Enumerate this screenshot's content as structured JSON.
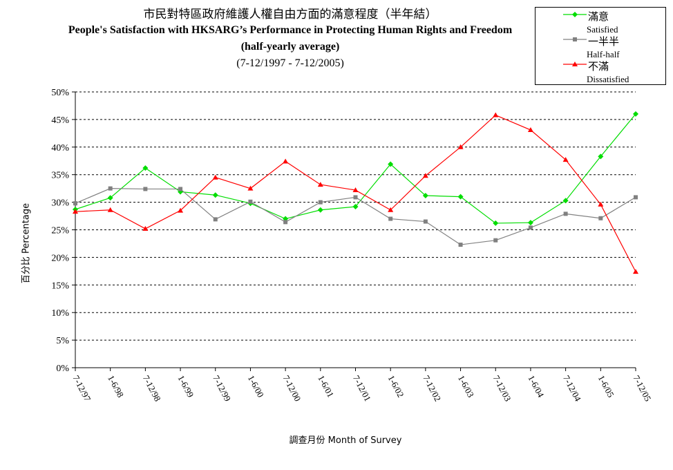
{
  "title_zh": "市民對特區政府維護人權自由方面的滿意程度（半年結）",
  "title_en": "People's Satisfaction with HKSARG’s Performance in Protecting Human Rights and Freedom",
  "subtitle": "(half-yearly average)",
  "period": "(7-12/1997 - 7-12/2005)",
  "chart_data": {
    "type": "line",
    "title": "People's Satisfaction with HKSARG’s Performance in Protecting Human Rights and Freedom",
    "xlabel": "調查月份 Month of Survey",
    "ylabel": "百分比 Percentage",
    "ylim": [
      0,
      50
    ],
    "yticks": [
      "0%",
      "5%",
      "10%",
      "15%",
      "20%",
      "25%",
      "30%",
      "35%",
      "40%",
      "45%",
      "50%"
    ],
    "grid": "horizontal dashed",
    "legend_position": "top-right",
    "categories": [
      "7-12/97",
      "1-6/98",
      "7-12/98",
      "1-6/99",
      "7-12/99",
      "1-6/00",
      "7-12/00",
      "1-6/01",
      "7-12/01",
      "1-6/02",
      "7-12/02",
      "1-6/03",
      "7-12/03",
      "1-6/04",
      "7-12/04",
      "1-6/05",
      "7-12/05"
    ],
    "series": [
      {
        "name": "滿意",
        "name_en": "Satisfied",
        "color": "#00dd00",
        "marker": "diamond",
        "values": [
          28.7,
          30.8,
          36.2,
          31.9,
          31.3,
          29.8,
          27.0,
          28.6,
          29.2,
          36.9,
          31.2,
          31.0,
          26.2,
          26.3,
          30.3,
          38.3,
          46.0
        ]
      },
      {
        "name": "一半半",
        "name_en": "Half-half",
        "color": "#808080",
        "marker": "square",
        "values": [
          29.8,
          32.5,
          32.4,
          32.4,
          26.9,
          30.1,
          26.4,
          30.0,
          30.9,
          27.0,
          26.5,
          22.3,
          23.1,
          25.4,
          27.9,
          27.1,
          30.9
        ]
      },
      {
        "name": "不滿",
        "name_en": "Dissatisfied",
        "color": "#ff0000",
        "marker": "triangle",
        "values": [
          28.3,
          28.6,
          25.2,
          28.5,
          34.5,
          32.5,
          37.4,
          33.2,
          32.2,
          28.6,
          34.8,
          40.0,
          45.8,
          43.1,
          37.7,
          29.6,
          17.4
        ]
      }
    ]
  }
}
